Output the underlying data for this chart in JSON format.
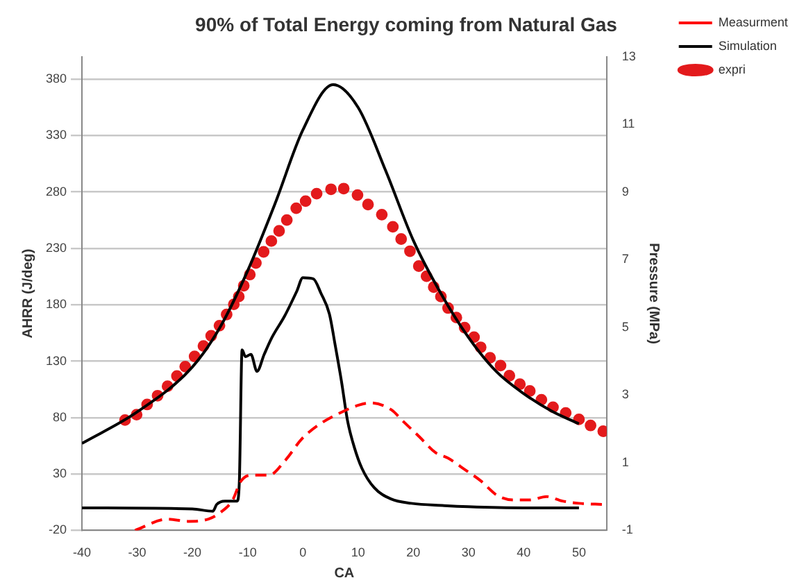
{
  "chart_data": {
    "type": "line",
    "title": "90% of Total Energy coming from Natural Gas",
    "xlabel": "CA",
    "ylabel": "AHRR (J/deg)",
    "y2label": "Pressure (MPa)",
    "xlim": [
      -40,
      55
    ],
    "xticks": [
      -40,
      -30,
      -20,
      -10,
      0,
      10,
      20,
      30,
      40,
      50
    ],
    "ylim": [
      -20,
      400
    ],
    "yticks": [
      -20,
      30,
      80,
      130,
      180,
      230,
      280,
      330,
      380
    ],
    "y2lim": [
      -1,
      13
    ],
    "y2ticks": [
      -1,
      1,
      3,
      5,
      7,
      9,
      11,
      13
    ],
    "grid": "y",
    "legend": "top right",
    "series": [
      {
        "name": "Measurment",
        "line_style": "dashed",
        "color": "#ff0000",
        "x": [
          -30.4,
          -24.5,
          -20.8,
          -17.1,
          -14.9,
          -12.7,
          -11.3,
          -9.4,
          -6.1,
          -3.2,
          -0.2,
          2.7,
          7.1,
          10.1,
          12.3,
          16,
          18.1,
          21.1,
          24,
          26.3,
          29.3,
          32.2,
          35.2,
          38.1,
          41.1,
          44.1,
          47,
          50,
          54.4
        ],
        "values": [
          -20,
          -10,
          -12,
          -10,
          -4,
          7,
          23,
          29,
          29,
          42,
          61,
          73,
          85,
          91,
          93,
          87,
          77,
          63,
          49,
          44,
          34,
          24,
          11,
          7,
          7,
          10,
          6,
          4,
          3
        ]
      },
      {
        "name": "Simulation",
        "color": "#000000",
        "x": [
          -40,
          -20,
          -16.3,
          -15.6,
          -14.1,
          -11.9,
          -11.5,
          -11,
          -10.4,
          -9.4,
          -8.3,
          -7,
          -5.6,
          -3.3,
          -1.1,
          0,
          1.9,
          3.3,
          4.8,
          5.9,
          7,
          8.1,
          9.3,
          10.7,
          12.9,
          15.9,
          19.6,
          25.6,
          30,
          40,
          50
        ],
        "values": [
          0,
          -1,
          -3,
          3,
          6,
          6,
          23,
          140,
          134,
          136,
          121,
          136,
          151,
          170,
          192,
          204,
          203,
          190,
          172,
          143,
          112,
          77,
          54,
          35,
          18,
          8,
          4,
          2,
          1,
          0,
          0
        ]
      },
      {
        "name": "expri",
        "type": "scatter",
        "marker": "circle",
        "axis": "y2",
        "color": "#e31a1c",
        "x": [
          -32.2,
          -30.1,
          -28.2,
          -26.3,
          -24.5,
          -22.8,
          -21.3,
          -19.6,
          -18,
          -16.6,
          -15.1,
          -13.8,
          -12.5,
          -11.6,
          -10.7,
          -9.6,
          -8.5,
          -7.1,
          -5.7,
          -4.3,
          -2.9,
          -1.2,
          0.5,
          2.5,
          5.1,
          7.4,
          9.9,
          11.8,
          14.3,
          16.3,
          17.8,
          19.4,
          21,
          22.4,
          23.7,
          25,
          26.3,
          27.8,
          29.3,
          31,
          32.2,
          33.9,
          35.8,
          37.4,
          39.3,
          41.1,
          43.2,
          45.3,
          47.6,
          50,
          52.1,
          54.4
        ],
        "values": [
          2.26,
          2.42,
          2.72,
          2.98,
          3.26,
          3.56,
          3.84,
          4.14,
          4.45,
          4.75,
          5.05,
          5.38,
          5.68,
          5.91,
          6.23,
          6.56,
          6.9,
          7.23,
          7.55,
          7.85,
          8.17,
          8.52,
          8.73,
          8.95,
          9.08,
          9.1,
          8.91,
          8.63,
          8.33,
          7.97,
          7.61,
          7.25,
          6.81,
          6.51,
          6.19,
          5.91,
          5.57,
          5.29,
          4.99,
          4.71,
          4.41,
          4.1,
          3.87,
          3.57,
          3.32,
          3.12,
          2.86,
          2.64,
          2.47,
          2.28,
          2.1,
          1.93
        ]
      },
      {
        "axis": "y2",
        "color": "#000000",
        "x": [
          -40,
          -30,
          -20,
          -15,
          -10,
          -5,
          0,
          5.5,
          10,
          15,
          20,
          25,
          30,
          35,
          40,
          45,
          50
        ],
        "values": [
          1.57,
          2.5,
          3.83,
          5.0,
          6.67,
          8.67,
          10.83,
          12.17,
          11.5,
          9.63,
          7.57,
          6.0,
          4.7,
          3.7,
          3.04,
          2.53,
          2.15
        ]
      }
    ]
  }
}
